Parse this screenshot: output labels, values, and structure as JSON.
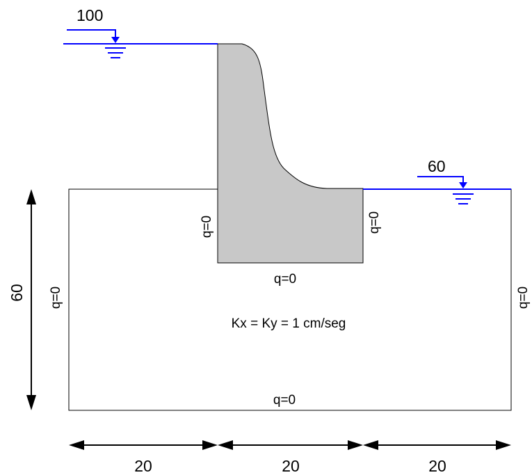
{
  "upstream": {
    "head_label": "100",
    "water_color": "#0000ff"
  },
  "downstream": {
    "head_label": "60",
    "water_color": "#0000ff"
  },
  "dam": {
    "fill_color": "#c8c8c8"
  },
  "boundaries": {
    "dam_upstream_face": "q=0",
    "dam_downstream_face": "q=0",
    "dam_base": "q=0",
    "left": "q=0",
    "right": "q=0",
    "bottom": "q=0"
  },
  "permeability": "Kx = Ky = 1 cm/seg",
  "dimensions": {
    "depth": "60",
    "width_left": "20",
    "width_middle": "20",
    "width_right": "20"
  }
}
